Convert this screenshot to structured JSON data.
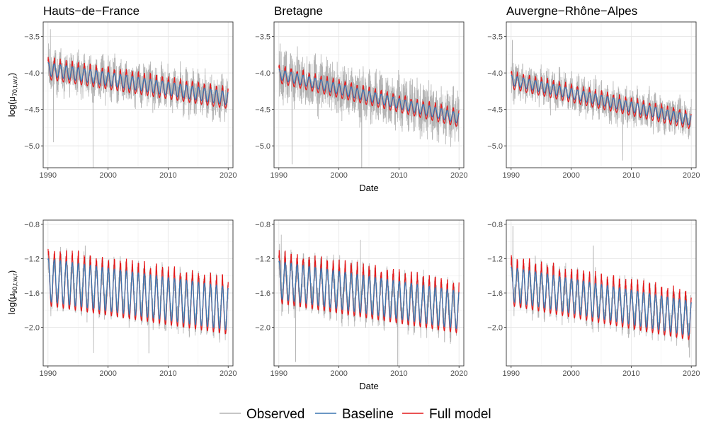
{
  "chart_data": {
    "type": "line",
    "xlabel": "Date",
    "x_ticks": [
      1990,
      2000,
      2010,
      2020
    ],
    "xlim": [
      1989.2,
      2020.8
    ],
    "legend": {
      "position": "bottom",
      "entries": [
        {
          "name": "Observed",
          "color": "#b3b3b3"
        },
        {
          "name": "Baseline",
          "color": "#3a75b0"
        },
        {
          "name": "Full model",
          "color": "#e41a1c"
        }
      ]
    },
    "rows": [
      {
        "ylabel": {
          "base": "log(μ",
          "sub": "70,t,w,r",
          "close": ")"
        },
        "ylim": [
          -5.3,
          -3.3
        ],
        "y_ticks": [
          -3.5,
          -4.0,
          -4.5,
          -5.0
        ],
        "y_tick_labels": [
          "−3.5",
          "−4.0",
          "−4.5",
          "−5.0"
        ]
      },
      {
        "ylabel": {
          "base": "log(μ",
          "sub": "90,t,w,r",
          "close": ")"
        },
        "ylim": [
          -2.45,
          -0.75
        ],
        "y_ticks": [
          -0.8,
          -1.2,
          -1.6,
          -2.0
        ],
        "y_tick_labels": [
          "−0.8",
          "−1.2",
          "−1.6",
          "−2.0"
        ]
      }
    ],
    "panels": [
      {
        "region": "Hauts-de-France",
        "row": 0,
        "col": 0,
        "title": "Hauts−de−France",
        "baseline": {
          "start": -3.95,
          "end": -4.35,
          "amplitude": 0.09
        },
        "full_model_peak_extra": 0.06,
        "observed_noise": 0.28,
        "observed_spikes": [
          [
            1990.9,
            -4.95
          ],
          [
            1997.5,
            -5.3
          ],
          [
            1990.4,
            -3.4
          ]
        ]
      },
      {
        "region": "Bretagne",
        "row": 0,
        "col": 1,
        "title": "Bretagne",
        "baseline": {
          "start": -4.02,
          "end": -4.62,
          "amplitude": 0.07
        },
        "full_model_peak_extra": 0.05,
        "observed_noise": 0.35,
        "observed_spikes": [
          [
            1992.2,
            -5.25
          ],
          [
            2003.8,
            -5.3
          ],
          [
            1990.2,
            -3.6
          ]
        ]
      },
      {
        "region": "Auvergne-Rhône-Alpes",
        "row": 0,
        "col": 2,
        "title": "Auvergne−Rhône−Alpes",
        "baseline": {
          "start": -4.1,
          "end": -4.65,
          "amplitude": 0.07
        },
        "full_model_peak_extra": 0.05,
        "observed_noise": 0.25,
        "observed_spikes": [
          [
            1990.2,
            -3.55
          ],
          [
            2008.6,
            -5.2
          ]
        ]
      },
      {
        "region": "Hauts-de-France",
        "row": 1,
        "col": 0,
        "title": "",
        "baseline": {
          "start": -1.45,
          "end": -1.78,
          "amplitude": 0.25
        },
        "full_model_peak_extra": 0.1,
        "observed_noise": 0.18,
        "observed_spikes": [
          [
            1996.2,
            -1.05
          ],
          [
            1997.6,
            -2.3
          ],
          [
            2006.8,
            -2.3
          ]
        ]
      },
      {
        "region": "Bretagne",
        "row": 1,
        "col": 1,
        "title": "",
        "baseline": {
          "start": -1.45,
          "end": -1.8,
          "amplitude": 0.22
        },
        "full_model_peak_extra": 0.1,
        "observed_noise": 0.2,
        "observed_spikes": [
          [
            1990.4,
            -0.92
          ],
          [
            1992.8,
            -2.4
          ],
          [
            2003.6,
            -0.98
          ],
          [
            2009.8,
            -2.45
          ]
        ]
      },
      {
        "region": "Auvergne-Rhône-Alpes",
        "row": 1,
        "col": 2,
        "title": "",
        "baseline": {
          "start": -1.5,
          "end": -1.9,
          "amplitude": 0.2
        },
        "full_model_peak_extra": 0.1,
        "observed_noise": 0.17,
        "observed_spikes": [
          [
            1990.3,
            -0.82
          ],
          [
            2003.7,
            -1.05
          ],
          [
            2019.7,
            -2.35
          ]
        ]
      }
    ]
  }
}
